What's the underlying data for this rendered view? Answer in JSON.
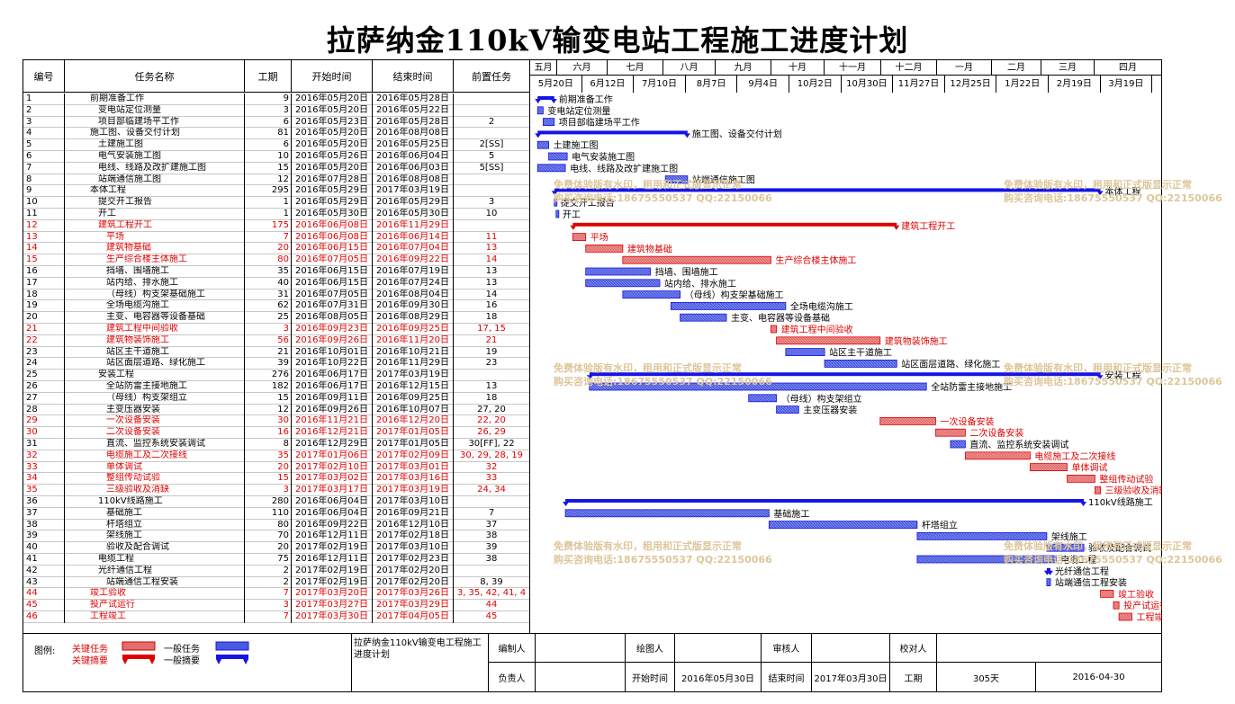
{
  "title": "拉萨纳金110kV输变电站工程施工进度计划",
  "headers": {
    "id": "编号",
    "name": "任务名称",
    "dur": "工期",
    "start": "开始时间",
    "end": "结束时间",
    "pred": "前置任务"
  },
  "months": [
    "五月",
    "六月",
    "七月",
    "八月",
    "九月",
    "十月",
    "十一月",
    "十二月",
    "一月",
    "二月",
    "三月",
    "四月"
  ],
  "weeks": [
    "5月20日",
    "6月12日",
    "7月10日",
    "8月7日",
    "9月4日",
    "10月2日",
    "10月30日",
    "11月27日",
    "12月25日",
    "1月22日",
    "2月19日",
    "3月19日"
  ],
  "tasks": [
    {
      "id": "1",
      "name": "前期准备工作",
      "indent": 0,
      "dur": 9,
      "start": "2016年05月20日",
      "end": "2016年05月28日",
      "pred": "",
      "crit": false,
      "summary": true
    },
    {
      "id": "2",
      "name": "变电站定位测量",
      "indent": 1,
      "dur": 3,
      "start": "2016年05月20日",
      "end": "2016年05月22日",
      "pred": "",
      "crit": false,
      "summary": false
    },
    {
      "id": "3",
      "name": "项目部临建场平工作",
      "indent": 1,
      "dur": 6,
      "start": "2016年05月23日",
      "end": "2016年05月28日",
      "pred": "2",
      "crit": false,
      "summary": false
    },
    {
      "id": "4",
      "name": "施工图、设备交付计划",
      "indent": 0,
      "dur": 81,
      "start": "2016年05月20日",
      "end": "2016年08月08日",
      "pred": "",
      "crit": false,
      "summary": true
    },
    {
      "id": "5",
      "name": "土建施工图",
      "indent": 1,
      "dur": 6,
      "start": "2016年05月20日",
      "end": "2016年05月25日",
      "pred": "2[SS]",
      "crit": false,
      "summary": false
    },
    {
      "id": "6",
      "name": "电气安装施工图",
      "indent": 1,
      "dur": 10,
      "start": "2016年05月26日",
      "end": "2016年06月04日",
      "pred": "5",
      "crit": false,
      "summary": false
    },
    {
      "id": "7",
      "name": "电线、线路及改扩建施工图",
      "indent": 1,
      "dur": 15,
      "start": "2016年05月20日",
      "end": "2016年06月03日",
      "pred": "5[SS]",
      "crit": false,
      "summary": false
    },
    {
      "id": "8",
      "name": "站端通信施工图",
      "indent": 1,
      "dur": 12,
      "start": "2016年07月28日",
      "end": "2016年08月08日",
      "pred": "",
      "crit": false,
      "summary": false
    },
    {
      "id": "9",
      "name": "本体工程",
      "indent": 0,
      "dur": 295,
      "start": "2016年05月29日",
      "end": "2017年03月19日",
      "pred": "",
      "crit": false,
      "summary": true
    },
    {
      "id": "10",
      "name": "提交开工报告",
      "indent": 1,
      "dur": 1,
      "start": "2016年05月29日",
      "end": "2016年05月29日",
      "pred": "3",
      "crit": false,
      "summary": false
    },
    {
      "id": "11",
      "name": "开工",
      "indent": 1,
      "dur": 1,
      "start": "2016年05月30日",
      "end": "2016年05月30日",
      "pred": "10",
      "crit": false,
      "summary": false
    },
    {
      "id": "12",
      "name": "建筑工程开工",
      "indent": 1,
      "dur": 175,
      "start": "2016年06月08日",
      "end": "2016年11月29日",
      "pred": "",
      "crit": true,
      "summary": true
    },
    {
      "id": "13",
      "name": "平场",
      "indent": 2,
      "dur": 7,
      "start": "2016年06月08日",
      "end": "2016年06月14日",
      "pred": "11",
      "crit": true,
      "summary": false
    },
    {
      "id": "14",
      "name": "建筑物基础",
      "indent": 2,
      "dur": 20,
      "start": "2016年06月15日",
      "end": "2016年07月04日",
      "pred": "13",
      "crit": true,
      "summary": false
    },
    {
      "id": "15",
      "name": "生产综合楼主体施工",
      "indent": 2,
      "dur": 80,
      "start": "2016年07月05日",
      "end": "2016年09月22日",
      "pred": "14",
      "crit": true,
      "summary": false
    },
    {
      "id": "16",
      "name": "挡墙、围墙施工",
      "indent": 2,
      "dur": 35,
      "start": "2016年06月15日",
      "end": "2016年07月19日",
      "pred": "13",
      "crit": false,
      "summary": false
    },
    {
      "id": "17",
      "name": "站内给、排水施工",
      "indent": 2,
      "dur": 40,
      "start": "2016年06月15日",
      "end": "2016年07月24日",
      "pred": "13",
      "crit": false,
      "summary": false
    },
    {
      "id": "18",
      "name": "（母线）构支架基础施工",
      "indent": 2,
      "dur": 31,
      "start": "2016年07月05日",
      "end": "2016年08月04日",
      "pred": "14",
      "crit": false,
      "summary": false
    },
    {
      "id": "19",
      "name": "全场电缆沟施工",
      "indent": 2,
      "dur": 62,
      "start": "2016年07月31日",
      "end": "2016年09月30日",
      "pred": "16",
      "crit": false,
      "summary": false
    },
    {
      "id": "20",
      "name": "主变、电容器等设备基础",
      "indent": 2,
      "dur": 25,
      "start": "2016年08月05日",
      "end": "2016年08月29日",
      "pred": "18",
      "crit": false,
      "summary": false
    },
    {
      "id": "21",
      "name": "建筑工程中间验收",
      "indent": 2,
      "dur": 3,
      "start": "2016年09月23日",
      "end": "2016年09月25日",
      "pred": "17, 15",
      "crit": true,
      "summary": false
    },
    {
      "id": "22",
      "name": "建筑物装饰施工",
      "indent": 2,
      "dur": 56,
      "start": "2016年09月26日",
      "end": "2016年11月20日",
      "pred": "21",
      "crit": true,
      "summary": false
    },
    {
      "id": "23",
      "name": "站区主干道施工",
      "indent": 2,
      "dur": 21,
      "start": "2016年10月01日",
      "end": "2016年10月21日",
      "pred": "19",
      "crit": false,
      "summary": false
    },
    {
      "id": "24",
      "name": "站区面层道路、绿化施工",
      "indent": 2,
      "dur": 39,
      "start": "2016年10月22日",
      "end": "2016年11月29日",
      "pred": "23",
      "crit": false,
      "summary": false
    },
    {
      "id": "25",
      "name": "安装工程",
      "indent": 1,
      "dur": 276,
      "start": "2016年06月17日",
      "end": "2017年03月19日",
      "pred": "",
      "crit": false,
      "summary": true
    },
    {
      "id": "26",
      "name": "全站防雷主接地施工",
      "indent": 2,
      "dur": 182,
      "start": "2016年06月17日",
      "end": "2016年12月15日",
      "pred": "13",
      "crit": false,
      "summary": false
    },
    {
      "id": "27",
      "name": "（母线）构支架组立",
      "indent": 2,
      "dur": 15,
      "start": "2016年09月11日",
      "end": "2016年09月25日",
      "pred": "18",
      "crit": false,
      "summary": false
    },
    {
      "id": "28",
      "name": "主变压器安装",
      "indent": 2,
      "dur": 12,
      "start": "2016年09月26日",
      "end": "2016年10月07日",
      "pred": "27, 20",
      "crit": false,
      "summary": false
    },
    {
      "id": "29",
      "name": "一次设备安装",
      "indent": 2,
      "dur": 30,
      "start": "2016年11月21日",
      "end": "2016年12月20日",
      "pred": "22, 20",
      "crit": true,
      "summary": false
    },
    {
      "id": "30",
      "name": "二次设备安装",
      "indent": 2,
      "dur": 16,
      "start": "2016年12月21日",
      "end": "2017年01月05日",
      "pred": "26, 29",
      "crit": true,
      "summary": false
    },
    {
      "id": "31",
      "name": "直流、监控系统安装调试",
      "indent": 2,
      "dur": 8,
      "start": "2016年12月29日",
      "end": "2017年01月05日",
      "pred": "30[FF], 22",
      "crit": false,
      "summary": false
    },
    {
      "id": "32",
      "name": "电缆施工及二次接线",
      "indent": 2,
      "dur": 35,
      "start": "2017年01月06日",
      "end": "2017年02月09日",
      "pred": "30, 29, 28, 19",
      "crit": true,
      "summary": false
    },
    {
      "id": "33",
      "name": "单体调试",
      "indent": 2,
      "dur": 20,
      "start": "2017年02月10日",
      "end": "2017年03月01日",
      "pred": "32",
      "crit": true,
      "summary": false
    },
    {
      "id": "34",
      "name": "整组传动试验",
      "indent": 2,
      "dur": 15,
      "start": "2017年03月02日",
      "end": "2017年03月16日",
      "pred": "33",
      "crit": true,
      "summary": false
    },
    {
      "id": "35",
      "name": "三级验收及消缺",
      "indent": 2,
      "dur": 3,
      "start": "2017年03月17日",
      "end": "2017年03月19日",
      "pred": "24, 34",
      "crit": true,
      "summary": false
    },
    {
      "id": "36",
      "name": "110kV线路施工",
      "indent": 1,
      "dur": 280,
      "start": "2016年06月04日",
      "end": "2017年03月10日",
      "pred": "",
      "crit": false,
      "summary": true
    },
    {
      "id": "37",
      "name": "基础施工",
      "indent": 2,
      "dur": 110,
      "start": "2016年06月04日",
      "end": "2016年09月21日",
      "pred": "7",
      "crit": false,
      "summary": false
    },
    {
      "id": "38",
      "name": "杆塔组立",
      "indent": 2,
      "dur": 80,
      "start": "2016年09月22日",
      "end": "2016年12月10日",
      "pred": "37",
      "crit": false,
      "summary": false
    },
    {
      "id": "39",
      "name": "架线施工",
      "indent": 2,
      "dur": 70,
      "start": "2016年12月11日",
      "end": "2017年02月18日",
      "pred": "38",
      "crit": false,
      "summary": false
    },
    {
      "id": "40",
      "name": "验收及配合调试",
      "indent": 2,
      "dur": 20,
      "start": "2017年02月19日",
      "end": "2017年03月10日",
      "pred": "39",
      "crit": false,
      "summary": false
    },
    {
      "id": "41",
      "name": "电缆工程",
      "indent": 1,
      "dur": 75,
      "start": "2016年12月11日",
      "end": "2017年02月23日",
      "pred": "38",
      "crit": false,
      "summary": false
    },
    {
      "id": "42",
      "name": "光纤通信工程",
      "indent": 1,
      "dur": 2,
      "start": "2017年02月19日",
      "end": "2017年02月20日",
      "pred": "",
      "crit": false,
      "summary": true
    },
    {
      "id": "43",
      "name": "站端通信工程安装",
      "indent": 2,
      "dur": 2,
      "start": "2017年02月19日",
      "end": "2017年02月20日",
      "pred": "8, 39",
      "crit": false,
      "summary": false
    },
    {
      "id": "44",
      "name": "竣工验收",
      "indent": 0,
      "dur": 7,
      "start": "2017年03月20日",
      "end": "2017年03月26日",
      "pred": "3, 35, 42, 41, 4",
      "crit": true,
      "summary": false
    },
    {
      "id": "45",
      "name": "投产试运行",
      "indent": 0,
      "dur": 3,
      "start": "2017年03月27日",
      "end": "2017年03月29日",
      "pred": "44",
      "crit": true,
      "summary": false
    },
    {
      "id": "46",
      "name": "工程竣工",
      "indent": 0,
      "dur": 7,
      "start": "2017年03月30日",
      "end": "2017年04月05日",
      "pred": "45",
      "crit": true,
      "summary": false
    }
  ],
  "chart_data": {
    "type": "gantt",
    "title": "拉萨纳金110kV输变电站工程施工进度计划",
    "time_axis_start": "2016-05-16",
    "note": "task bars are derived from tasks[].start / tasks[].end"
  },
  "watermark": {
    "line1": "免费体验版有水印，租用和正式版显示正常",
    "line2": "购买咨询电话:18675550537 QQ:22150066"
  },
  "legend": {
    "label": "图例:",
    "critical_task": "关键任务",
    "critical_summary": "关键摘要",
    "normal_task": "一般任务",
    "normal_summary": "一般摘要"
  },
  "footer": {
    "project_name": "拉萨纳金110kV输变电工程施工进度计划",
    "prepared_by": "编制人",
    "drawn_by": "绘图人",
    "reviewed_by": "审核人",
    "checked_by": "校对人",
    "responsible": "负责人",
    "start_label": "开始时间",
    "start_value": "2016年05月30日",
    "end_label": "结束时间",
    "end_value": "2017年03月30日",
    "duration_label": "工期",
    "duration_value": "305天",
    "date_value": "2016-04-30"
  },
  "colors": {
    "critical": "#e00000",
    "critical_fill": "#e36c6c",
    "normal": "#1414e6",
    "normal_fill": "#4a5ae0"
  }
}
